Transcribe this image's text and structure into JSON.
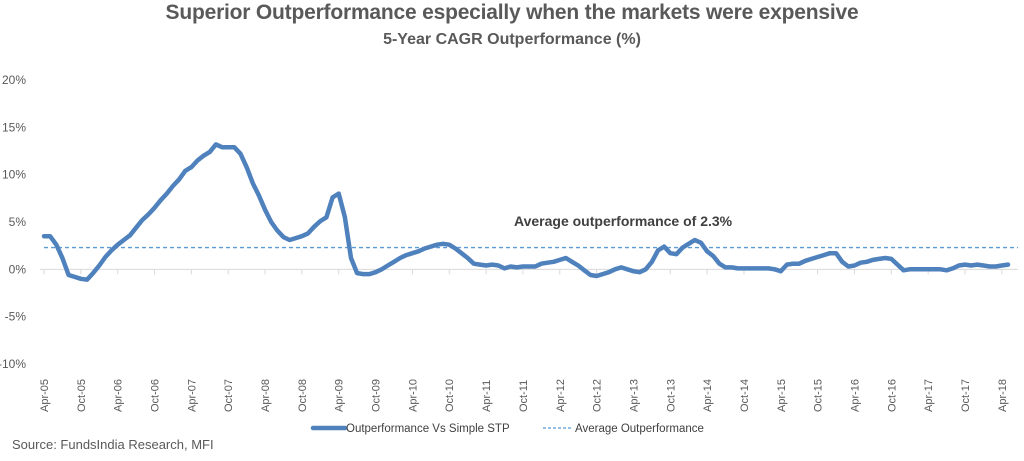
{
  "chart_data": {
    "type": "line",
    "title": "Superior Outperformance especially when the markets were expensive",
    "subtitle": "5-Year CAGR Outperformance (%)",
    "xlabel": "",
    "ylabel": "",
    "ylim": [
      -10,
      20
    ],
    "yticks": [
      20,
      15,
      10,
      5,
      0,
      -5,
      -10
    ],
    "ytick_labels": [
      "20%",
      "15%",
      "10%",
      "5%",
      "0%",
      "-5%",
      "-10%"
    ],
    "x_start": "Apr-05",
    "x_frequency": "monthly",
    "xtick_labels": [
      "Apr-05",
      "Oct-05",
      "Apr-06",
      "Oct-06",
      "Apr-07",
      "Oct-07",
      "Apr-08",
      "Oct-08",
      "Apr-09",
      "Oct-09",
      "Apr-10",
      "Oct-10",
      "Apr-11",
      "Oct-11",
      "Apr-12",
      "Oct-12",
      "Apr-13",
      "Oct-13",
      "Apr-14",
      "Oct-14",
      "Apr-15",
      "Oct-15",
      "Apr-16",
      "Oct-16",
      "Apr-17",
      "Oct-17",
      "Apr-18"
    ],
    "xtick_every_months": 6,
    "grid": false,
    "legend_position": "bottom",
    "series": [
      {
        "name": "Outperformance Vs Simple STP",
        "color": "#4f81bd",
        "style": "solid",
        "values": [
          3.5,
          3.5,
          2.6,
          1.2,
          -0.6,
          -0.8,
          -1.0,
          -1.1,
          -0.4,
          0.4,
          1.3,
          2.0,
          2.6,
          3.1,
          3.6,
          4.4,
          5.2,
          5.8,
          6.5,
          7.3,
          8.0,
          8.8,
          9.5,
          10.4,
          10.8,
          11.5,
          12.0,
          12.4,
          13.2,
          12.9,
          12.9,
          12.9,
          12.2,
          10.8,
          9.1,
          7.8,
          6.3,
          5.0,
          4.1,
          3.4,
          3.1,
          3.3,
          3.5,
          3.8,
          4.5,
          5.1,
          5.5,
          7.6,
          8.0,
          5.5,
          1.2,
          -0.4,
          -0.5,
          -0.5,
          -0.3,
          0.0,
          0.4,
          0.8,
          1.2,
          1.5,
          1.7,
          1.9,
          2.2,
          2.4,
          2.6,
          2.7,
          2.6,
          2.2,
          1.7,
          1.2,
          0.6,
          0.5,
          0.4,
          0.5,
          0.4,
          0.1,
          0.3,
          0.2,
          0.3,
          0.3,
          0.3,
          0.6,
          0.7,
          0.8,
          1.0,
          1.2,
          0.8,
          0.4,
          -0.1,
          -0.6,
          -0.7,
          -0.5,
          -0.3,
          0.0,
          0.2,
          0.0,
          -0.2,
          -0.3,
          0.0,
          0.8,
          2.0,
          2.4,
          1.7,
          1.6,
          2.3,
          2.7,
          3.1,
          2.8,
          1.9,
          1.4,
          0.6,
          0.2,
          0.2,
          0.1,
          0.1,
          0.1,
          0.1,
          0.1,
          0.1,
          0.0,
          -0.2,
          0.5,
          0.6,
          0.6,
          0.9,
          1.1,
          1.3,
          1.5,
          1.7,
          1.7,
          0.8,
          0.3,
          0.4,
          0.7,
          0.8,
          1.0,
          1.1,
          1.2,
          1.1,
          0.5,
          -0.1,
          0.0,
          0.0,
          0.0,
          0.0,
          0.0,
          0.0,
          -0.1,
          0.1,
          0.4,
          0.5,
          0.4,
          0.5,
          0.4,
          0.3,
          0.3,
          0.4,
          0.5
        ]
      },
      {
        "name": "Average Outperformance",
        "color": "#5b9bd5",
        "style": "dashed",
        "constant": 2.3
      }
    ],
    "annotations": [
      {
        "text": "Average outperformance of 2.3%",
        "x": "Apr-12",
        "y": 2.3
      }
    ]
  },
  "footer": {
    "source": "Source: FundsIndia Research, MFI"
  }
}
